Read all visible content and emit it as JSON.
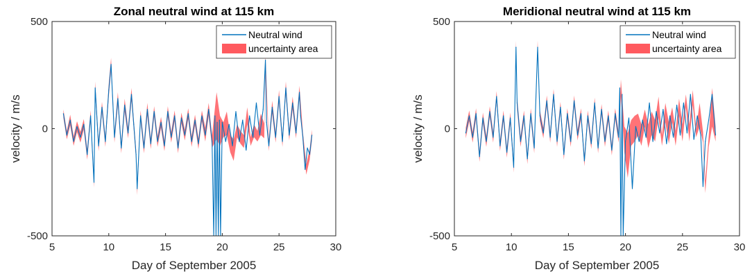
{
  "colors": {
    "wind": "#0072BD",
    "uncertainty": "#FF5A5F",
    "axis": "#262626"
  },
  "chart_data": [
    {
      "type": "line",
      "title": "Zonal neutral wind at 115 km",
      "xlabel": "Day of September 2005",
      "ylabel": "velocity / m/s",
      "xlim": [
        5,
        30
      ],
      "ylim": [
        -500,
        500
      ],
      "xticks": [
        5,
        10,
        15,
        20,
        25,
        30
      ],
      "yticks": [
        -500,
        0,
        500
      ],
      "grid": false,
      "legend_position": "top-right",
      "series": [
        {
          "name": "Neutral wind",
          "x": [
            6.0,
            6.3,
            6.6,
            6.9,
            7.2,
            7.5,
            7.8,
            8.1,
            8.4,
            8.7,
            8.8,
            9.1,
            9.4,
            9.7,
            10.0,
            10.2,
            10.5,
            10.8,
            11.1,
            11.4,
            11.7,
            12.0,
            12.2,
            12.4,
            12.5,
            12.8,
            13.1,
            13.4,
            13.7,
            14.0,
            14.3,
            14.6,
            14.9,
            15.2,
            15.5,
            15.8,
            16.1,
            16.4,
            16.7,
            17.0,
            17.3,
            17.6,
            17.9,
            18.2,
            18.5,
            18.8,
            19.1,
            19.25,
            19.35,
            19.45,
            19.55,
            19.65,
            19.75,
            19.85,
            20.0,
            20.3,
            20.6,
            20.9,
            21.2,
            21.5,
            21.8,
            22.1,
            22.4,
            22.7,
            23.0,
            23.3,
            23.6,
            23.8,
            23.9,
            24.1,
            24.4,
            24.7,
            25.0,
            25.3,
            25.6,
            25.9,
            26.2,
            26.5,
            26.8,
            26.9,
            27.1,
            27.3,
            27.5,
            27.7,
            27.9
          ],
          "y": [
            70,
            -30,
            40,
            -60,
            10,
            -40,
            20,
            -120,
            60,
            -250,
            190,
            -80,
            100,
            -60,
            180,
            300,
            -40,
            140,
            -90,
            110,
            -20,
            160,
            20,
            -120,
            -280,
            60,
            -90,
            90,
            -70,
            80,
            -60,
            30,
            -80,
            80,
            -40,
            60,
            -90,
            50,
            -30,
            70,
            -60,
            40,
            -70,
            60,
            -30,
            90,
            -60,
            -500,
            60,
            -500,
            30,
            -500,
            40,
            -500,
            30,
            -60,
            20,
            -80,
            80,
            -60,
            40,
            -100,
            60,
            -40,
            120,
            -30,
            90,
            320,
            30,
            -80,
            100,
            -40,
            150,
            -60,
            190,
            -30,
            120,
            -20,
            170,
            60,
            -40,
            -190,
            -90,
            -120,
            -30
          ]
        },
        {
          "name": "uncertainty area",
          "x": [
            6.0,
            6.3,
            6.6,
            6.9,
            7.2,
            7.5,
            7.8,
            8.1,
            8.4,
            8.7,
            8.8,
            9.1,
            9.4,
            9.7,
            10.0,
            10.2,
            10.5,
            10.8,
            11.1,
            11.4,
            11.7,
            12.0,
            12.2,
            12.4,
            12.5,
            12.8,
            13.1,
            13.4,
            13.7,
            14.0,
            14.3,
            14.6,
            14.9,
            15.2,
            15.5,
            15.8,
            16.1,
            16.4,
            16.7,
            17.0,
            17.3,
            17.6,
            17.9,
            18.2,
            18.5,
            18.8,
            19.1,
            19.5,
            19.8,
            20.1,
            20.4,
            20.7,
            21.0,
            21.3,
            21.6,
            21.9,
            22.2,
            22.5,
            22.8,
            23.1,
            23.4,
            23.7,
            23.8,
            24.1,
            24.4,
            24.7,
            25.0,
            25.3,
            25.6,
            25.9,
            26.2,
            26.5,
            26.8,
            27.1,
            27.4,
            27.7,
            27.9
          ],
          "lower": [
            50,
            -50,
            15,
            -80,
            -15,
            -65,
            -5,
            -145,
            35,
            -275,
            160,
            -105,
            75,
            -85,
            150,
            270,
            -65,
            110,
            -115,
            80,
            -45,
            130,
            -5,
            -145,
            -310,
            35,
            -115,
            60,
            -95,
            55,
            -85,
            5,
            -105,
            55,
            -65,
            35,
            -115,
            25,
            -55,
            45,
            -85,
            15,
            -95,
            35,
            -60,
            60,
            -90,
            -50,
            -80,
            -40,
            -30,
            -110,
            -150,
            -40,
            -70,
            -90,
            20,
            -80,
            -40,
            -60,
            -30,
            -45,
            290,
            -105,
            70,
            -65,
            120,
            -85,
            160,
            -55,
            90,
            -45,
            140,
            -65,
            -215,
            -145,
            -55
          ],
          "upper": [
            90,
            -10,
            65,
            -35,
            35,
            -15,
            45,
            -95,
            85,
            -225,
            220,
            -55,
            125,
            -35,
            210,
            330,
            -15,
            170,
            -65,
            140,
            5,
            190,
            45,
            -95,
            -250,
            85,
            -65,
            120,
            -45,
            105,
            -35,
            55,
            -55,
            105,
            -15,
            85,
            -65,
            75,
            -5,
            95,
            -35,
            65,
            -45,
            85,
            5,
            120,
            -30,
            170,
            60,
            30,
            80,
            -30,
            -50,
            20,
            -10,
            -30,
            100,
            -40,
            20,
            -10,
            70,
            25,
            350,
            -55,
            130,
            -15,
            180,
            -35,
            220,
            -5,
            150,
            5,
            200,
            -15,
            -165,
            -95,
            -5
          ]
        }
      ]
    },
    {
      "type": "line",
      "title": "Meridional neutral wind at 115 km",
      "xlabel": "Day of September 2005",
      "ylabel": "velocity / m/s",
      "xlim": [
        5,
        30
      ],
      "ylim": [
        -500,
        500
      ],
      "xticks": [
        5,
        10,
        15,
        20,
        25,
        30
      ],
      "yticks": [
        -500,
        0,
        500
      ],
      "grid": false,
      "legend_position": "top-right",
      "series": [
        {
          "name": "Neutral wind",
          "x": [
            6.0,
            6.3,
            6.6,
            6.9,
            7.2,
            7.5,
            7.8,
            8.1,
            8.4,
            8.7,
            9.0,
            9.3,
            9.6,
            9.9,
            10.2,
            10.4,
            10.5,
            10.8,
            11.1,
            11.4,
            11.7,
            12.0,
            12.3,
            12.5,
            12.8,
            13.1,
            13.4,
            13.7,
            14.0,
            14.3,
            14.6,
            14.9,
            15.2,
            15.5,
            15.8,
            16.1,
            16.4,
            16.7,
            17.0,
            17.3,
            17.6,
            17.9,
            18.2,
            18.5,
            18.8,
            19.1,
            19.4,
            19.5,
            19.6,
            19.7,
            19.8,
            20.0,
            20.3,
            20.6,
            20.9,
            21.2,
            21.5,
            21.8,
            22.1,
            22.4,
            22.7,
            23.0,
            23.3,
            23.6,
            23.9,
            24.2,
            24.5,
            24.8,
            25.1,
            25.4,
            25.7,
            26.0,
            26.3,
            26.6,
            26.8,
            27.0,
            27.3,
            27.6,
            27.9
          ],
          "y": [
            -20,
            60,
            -40,
            70,
            -130,
            50,
            -60,
            80,
            -40,
            150,
            -80,
            60,
            -110,
            50,
            -180,
            380,
            120,
            -60,
            60,
            -140,
            70,
            -90,
            380,
            60,
            -20,
            130,
            -40,
            160,
            -60,
            100,
            -120,
            70,
            -60,
            130,
            -30,
            70,
            -150,
            60,
            -70,
            120,
            -90,
            90,
            -60,
            60,
            -100,
            70,
            -40,
            190,
            -500,
            160,
            -500,
            -60,
            50,
            -280,
            10,
            -60,
            40,
            -40,
            120,
            -60,
            80,
            -20,
            90,
            -70,
            60,
            -40,
            110,
            -30,
            120,
            -20,
            160,
            -50,
            60,
            -30,
            -270,
            -60,
            40,
            160,
            -30
          ]
        },
        {
          "name": "uncertainty area",
          "x": [
            6.0,
            6.3,
            6.6,
            6.9,
            7.2,
            7.5,
            7.8,
            8.1,
            8.4,
            8.7,
            9.0,
            9.3,
            9.6,
            9.9,
            10.2,
            10.4,
            10.5,
            10.8,
            11.1,
            11.4,
            11.7,
            12.0,
            12.3,
            12.5,
            12.8,
            13.1,
            13.4,
            13.7,
            14.0,
            14.3,
            14.6,
            14.9,
            15.2,
            15.5,
            15.8,
            16.1,
            16.4,
            16.7,
            17.0,
            17.3,
            17.6,
            17.9,
            18.2,
            18.5,
            18.8,
            19.1,
            19.4,
            19.6,
            19.9,
            20.2,
            20.5,
            20.8,
            21.1,
            21.4,
            21.7,
            22.0,
            22.3,
            22.6,
            22.9,
            23.2,
            23.5,
            23.8,
            24.1,
            24.4,
            24.7,
            25.0,
            25.3,
            25.6,
            25.9,
            26.2,
            26.5,
            26.8,
            27.0,
            27.3,
            27.6,
            27.9
          ],
          "lower": [
            -45,
            35,
            -65,
            45,
            -155,
            25,
            -85,
            55,
            -65,
            125,
            -105,
            35,
            -135,
            25,
            -205,
            350,
            90,
            -85,
            35,
            -165,
            45,
            -115,
            350,
            35,
            -45,
            105,
            -65,
            135,
            -85,
            75,
            -145,
            45,
            -85,
            105,
            -55,
            45,
            -175,
            35,
            -95,
            95,
            -115,
            65,
            -85,
            35,
            -125,
            45,
            -65,
            150,
            -110,
            -230,
            -80,
            -60,
            -30,
            -80,
            10,
            -90,
            -30,
            -60,
            50,
            -80,
            30,
            -70,
            30,
            -80,
            60,
            -60,
            100,
            -60,
            110,
            -40,
            10,
            -65,
            -300,
            -85,
            10,
            -60
          ],
          "upper": [
            5,
            85,
            -15,
            95,
            -105,
            75,
            -35,
            105,
            -15,
            175,
            -55,
            85,
            -85,
            75,
            -155,
            410,
            150,
            -35,
            85,
            -115,
            95,
            -65,
            410,
            85,
            5,
            155,
            -15,
            185,
            -35,
            125,
            -95,
            95,
            -35,
            155,
            -5,
            95,
            -125,
            85,
            -45,
            145,
            -65,
            115,
            -35,
            85,
            -75,
            95,
            -15,
            230,
            10,
            -20,
            40,
            60,
            70,
            20,
            90,
            20,
            80,
            40,
            150,
            -30,
            120,
            30,
            100,
            -10,
            140,
            20,
            160,
            20,
            180,
            0,
            120,
            -15,
            -240,
            -35,
            190,
            10
          ]
        }
      ]
    }
  ]
}
